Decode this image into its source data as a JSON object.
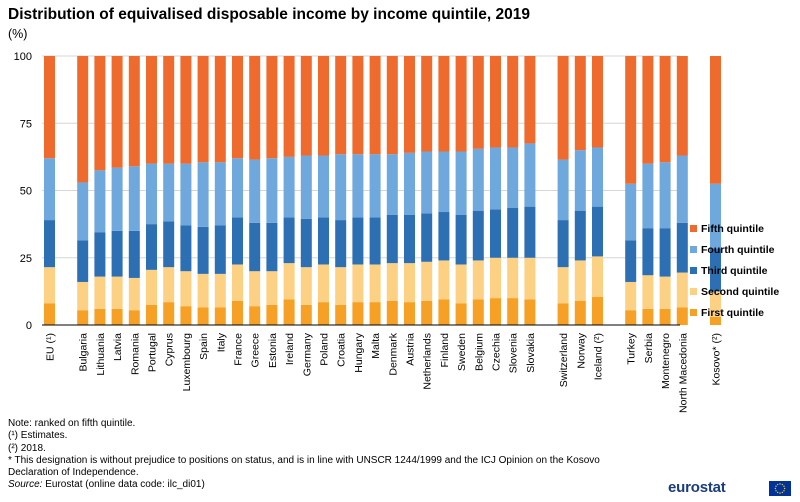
{
  "header": {
    "title": "Distribution of equivalised disposable income by income quintile, 2019",
    "unit": "(%)"
  },
  "colors": {
    "first": "#f6a125",
    "second": "#fcd183",
    "third": "#2c6fb2",
    "fourth": "#6ea8dc",
    "fifth": "#ee6a2d",
    "grid": "#d6d6d6",
    "axis": "#000000",
    "logo": "#1a3d7c",
    "flag": "#003399",
    "flag_star": "#ffcc00"
  },
  "chart_data": {
    "type": "bar",
    "stacked": true,
    "ylim": [
      0,
      100
    ],
    "yticks": [
      0,
      25,
      50,
      75,
      100
    ],
    "grid": true,
    "legend_position": "right",
    "groups": [
      {
        "categories": [
          "EU (¹)"
        ]
      },
      {
        "categories": [
          "Bulgaria",
          "Lithuania",
          "Latvia",
          "Romania",
          "Portugal",
          "Cyprus",
          "Luxembourg",
          "Spain",
          "Italy",
          "France",
          "Greece",
          "Estonia",
          "Ireland",
          "Germany",
          "Poland",
          "Croatia",
          "Hungary",
          "Malta",
          "Denmark",
          "Austria",
          "Netherlands",
          "Finland",
          "Sweden",
          "Belgium",
          "Czechia",
          "Slovenia",
          "Slovakia"
        ]
      },
      {
        "categories": [
          "Switzerland",
          "Norway",
          "Iceland (²)"
        ]
      },
      {
        "categories": [
          "Turkey",
          "Serbia",
          "Montenegro",
          "North Macedonia"
        ]
      },
      {
        "categories": [
          "Kosovo* (²)"
        ]
      }
    ],
    "series": [
      {
        "name": "First quintile",
        "key": "first",
        "values": [
          8.0,
          5.5,
          6.0,
          6.0,
          5.5,
          7.5,
          8.5,
          7.0,
          6.5,
          6.5,
          9.0,
          7.0,
          7.5,
          9.5,
          7.5,
          8.5,
          7.5,
          8.5,
          8.5,
          9.0,
          8.5,
          9.0,
          9.5,
          8.0,
          9.5,
          10.0,
          10.0,
          9.5,
          8.0,
          9.0,
          10.5,
          5.5,
          6.0,
          6.0,
          6.5,
          3.0
        ]
      },
      {
        "name": "Second quintile",
        "key": "second",
        "values": [
          13.5,
          10.5,
          12.0,
          12.0,
          12.0,
          13.0,
          13.0,
          13.0,
          12.5,
          12.5,
          13.5,
          13.0,
          12.5,
          13.5,
          14.0,
          14.0,
          14.0,
          14.0,
          14.0,
          14.0,
          14.5,
          14.5,
          14.5,
          14.5,
          14.5,
          15.0,
          15.0,
          15.5,
          13.5,
          15.0,
          15.0,
          10.5,
          12.5,
          12.0,
          13.0,
          9.5
        ]
      },
      {
        "name": "Third quintile",
        "key": "third",
        "values": [
          17.5,
          15.5,
          16.5,
          17.0,
          17.5,
          17.0,
          17.0,
          17.0,
          17.5,
          18.0,
          17.5,
          18.0,
          18.0,
          17.0,
          18.0,
          17.5,
          17.5,
          17.5,
          17.5,
          18.0,
          18.0,
          18.0,
          18.0,
          18.5,
          18.5,
          18.0,
          18.5,
          19.0,
          17.5,
          18.5,
          18.5,
          15.5,
          17.5,
          18.0,
          18.5,
          16.0
        ]
      },
      {
        "name": "Fourth quintile",
        "key": "fourth",
        "values": [
          23.0,
          21.5,
          23.0,
          23.5,
          24.0,
          22.5,
          21.5,
          23.0,
          24.0,
          23.5,
          22.0,
          23.5,
          24.0,
          22.5,
          23.5,
          23.0,
          24.5,
          23.5,
          23.5,
          22.5,
          23.0,
          23.0,
          22.5,
          23.5,
          23.0,
          23.0,
          22.5,
          23.5,
          22.5,
          22.5,
          22.0,
          21.0,
          24.0,
          24.5,
          25.0,
          24.0
        ]
      },
      {
        "name": "Fifth quintile",
        "key": "fifth",
        "values": [
          38.0,
          47.0,
          42.5,
          41.5,
          41.0,
          40.0,
          40.0,
          40.0,
          39.5,
          39.5,
          38.0,
          38.5,
          38.0,
          37.5,
          37.0,
          37.0,
          36.5,
          36.5,
          36.5,
          36.5,
          36.0,
          35.5,
          35.5,
          35.5,
          34.5,
          34.0,
          34.0,
          32.5,
          38.5,
          35.0,
          34.0,
          47.5,
          40.0,
          39.5,
          37.0,
          47.5
        ]
      }
    ]
  },
  "notes": {
    "line1": "Note: ranked on fifth quintile.",
    "line2": "(¹) Estimates.",
    "line3": "(²) 2018.",
    "line4": "* This designation is without prejudice to positions on status, and is in line with UNSCR 1244/1999 and the ICJ Opinion on the Kosovo Declaration of Independence.",
    "source_label": "Source:",
    "source_text": " Eurostat (online data code: ilc_di01)"
  },
  "footer": {
    "logo_text": "eurostat"
  }
}
